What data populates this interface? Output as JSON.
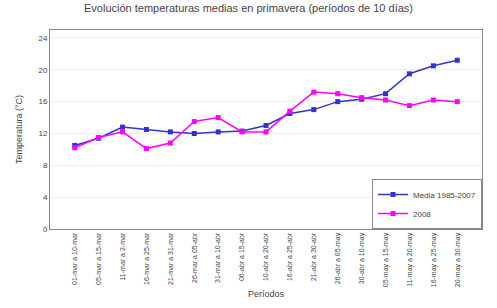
{
  "chart_data": {
    "type": "line",
    "title": "Evolución temperaturas medias en primavera (períodos de 10 días)",
    "xlabel": "Períodos",
    "ylabel": "Temperatura (°C)",
    "categories": [
      "01-mar a 10-mar",
      "05-mar a 15-mar",
      "11-mar a 2-mar",
      "16-mar a 25-mar",
      "21-mar a 31-mar",
      "26-mar a 05-abr",
      "31-mar a 10-abr",
      "06-abr a 15-abr",
      "10-abr a 20-abr",
      "16-abr a 25-abr",
      "21-abr a 30-abr",
      "26-abr a 05-may",
      "30-abr a 10-may",
      "05-may a 15-may",
      "11-may a 20-may",
      "16-may a 25-may",
      "20-may a 30-may"
    ],
    "series": [
      {
        "name": "Media 1985-2007",
        "color": "#3333CC",
        "marker": "square",
        "values": [
          10.5,
          11.4,
          12.8,
          12.5,
          12.2,
          12.0,
          12.2,
          12.3,
          13.0,
          14.5,
          15.0,
          16.0,
          16.3,
          17.0,
          19.5,
          20.5,
          21.2
        ]
      },
      {
        "name": "2008",
        "color": "#FF00FF",
        "marker": "square",
        "values": [
          10.2,
          11.5,
          12.2,
          10.1,
          10.8,
          13.5,
          14.0,
          12.2,
          12.2,
          14.8,
          17.2,
          17.0,
          16.5,
          16.2,
          15.5,
          16.2,
          16.0
        ]
      }
    ],
    "ylim": [
      0,
      25
    ],
    "yticks": [
      0,
      4,
      8,
      12,
      16,
      20,
      24
    ],
    "grid": true,
    "legend": "lower right"
  }
}
